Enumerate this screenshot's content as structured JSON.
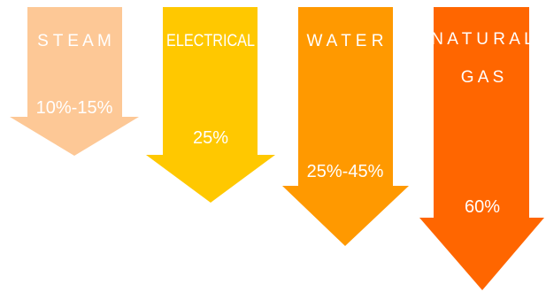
{
  "arrows": [
    {
      "title_lines": [
        "S T E A M"
      ],
      "value": "10%-15%",
      "color": "#FDC896"
    },
    {
      "title_lines": [
        "ELECTRICAL"
      ],
      "value": "25%",
      "color": "#FFC800"
    },
    {
      "title_lines": [
        "W A T E R"
      ],
      "value": "25%-45%",
      "color": "#FF9900"
    },
    {
      "title_lines": [
        "N A T U R A L",
        "G A S"
      ],
      "value": "60%",
      "color": "#FF6600"
    }
  ]
}
